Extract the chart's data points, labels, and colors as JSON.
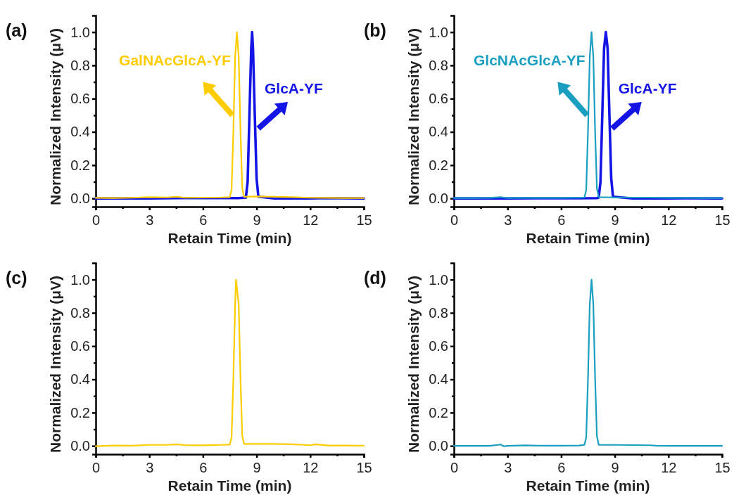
{
  "chart_data": [
    {
      "type": "line",
      "title": "(a)",
      "xlabel": "Retain Time (min)",
      "ylabel": "Normalized Intensity (μV)",
      "xlim": [
        0,
        15
      ],
      "ylim": [
        -0.05,
        1.1
      ],
      "xticks": [
        0,
        {
          "value": 1.5,
          "label": null
        },
        3,
        {
          "value": 4.5,
          "label": null
        },
        6,
        {
          "value": 7.5,
          "label": null
        },
        9,
        {
          "value": 10.5,
          "label": null
        },
        12,
        {
          "value": 13.5,
          "label": null
        },
        15
      ],
      "yticks": [
        {
          "value": 0,
          "label": "0.0"
        },
        {
          "value": 0.1,
          "label": null
        },
        {
          "value": 0.2,
          "label": "0.2"
        },
        {
          "value": 0.3,
          "label": null
        },
        {
          "value": 0.4,
          "label": "0.4"
        },
        {
          "value": 0.5,
          "label": null
        },
        {
          "value": 0.6,
          "label": "0.6"
        },
        {
          "value": 0.7,
          "label": null
        },
        {
          "value": 0.8,
          "label": "0.8"
        },
        {
          "value": 0.9,
          "label": null
        },
        {
          "value": 1,
          "label": "1.0"
        }
      ],
      "marker": "none",
      "series": [
        {
          "name": "GalNAcGlcA-YF",
          "color": "#ffcc00",
          "x": [
            0,
            1,
            2,
            3,
            4,
            4.5,
            5,
            6,
            7,
            7.5,
            7.6,
            7.7,
            7.8,
            7.9,
            8,
            8.1,
            8.2,
            8.3,
            9,
            10,
            11,
            12,
            13,
            14,
            15
          ],
          "values": [
            0.003,
            0.002,
            0.004,
            0.008,
            0.006,
            0.01,
            0.004,
            0.005,
            0.006,
            0.008,
            0.05,
            0.4,
            0.85,
            1,
            0.85,
            0.4,
            0.06,
            0.01,
            0.012,
            0.01,
            0.008,
            0.004,
            0.003,
            0.002,
            0.002
          ]
        },
        {
          "name": "GlcA-YF",
          "color": "#1414e6",
          "x": [
            0,
            3,
            5,
            7,
            8,
            8.4,
            8.5,
            8.6,
            8.7,
            8.75,
            8.8,
            8.9,
            9,
            9.1,
            10,
            12,
            13,
            15
          ],
          "values": [
            0,
            0,
            0.002,
            0.002,
            0.002,
            0.005,
            0.1,
            0.5,
            0.9,
            1,
            0.9,
            0.5,
            0.12,
            0.01,
            0,
            0,
            0.002,
            0
          ]
        }
      ]
    },
    {
      "type": "line",
      "title": "(b)",
      "xlabel": "Retain Time (min)",
      "ylabel": "Normalized Intensity (μV)",
      "xlim": [
        0,
        15
      ],
      "ylim": [
        -0.05,
        1.1
      ],
      "xticks": [
        0,
        {
          "value": 1.5,
          "label": null
        },
        3,
        {
          "value": 4.5,
          "label": null
        },
        6,
        {
          "value": 7.5,
          "label": null
        },
        9,
        {
          "value": 10.5,
          "label": null
        },
        12,
        {
          "value": 13.5,
          "label": null
        },
        15
      ],
      "yticks": [
        {
          "value": 0,
          "label": "0.0"
        },
        {
          "value": 0.1,
          "label": null
        },
        {
          "value": 0.2,
          "label": "0.2"
        },
        {
          "value": 0.3,
          "label": null
        },
        {
          "value": 0.4,
          "label": "0.4"
        },
        {
          "value": 0.5,
          "label": null
        },
        {
          "value": 0.6,
          "label": "0.6"
        },
        {
          "value": 0.7,
          "label": null
        },
        {
          "value": 0.8,
          "label": "0.8"
        },
        {
          "value": 0.9,
          "label": null
        },
        {
          "value": 1,
          "label": "1.0"
        }
      ],
      "marker": "none",
      "series": [
        {
          "name": "GlcNAcGlcA-YF",
          "color": "#1a9fc0",
          "x": [
            0,
            1,
            2,
            2.6,
            3,
            4,
            5,
            6,
            7,
            7.3,
            7.4,
            7.5,
            7.6,
            7.7,
            7.8,
            7.9,
            8,
            8.1,
            9,
            10,
            11,
            12,
            13,
            14,
            15
          ],
          "values": [
            0.002,
            0.002,
            0.003,
            0.008,
            0.002,
            0.004,
            0.003,
            0.003,
            0.004,
            0.006,
            0.05,
            0.4,
            0.85,
            1,
            0.85,
            0.4,
            0.06,
            0.008,
            0.006,
            0.005,
            0.005,
            0.003,
            0.003,
            0.002,
            0.002
          ]
        },
        {
          "name": "GlcA-YF",
          "color": "#1414e6",
          "x": [
            0,
            3,
            5,
            7,
            8,
            8.1,
            8.2,
            8.3,
            8.4,
            8.5,
            8.6,
            8.7,
            8.8,
            8.9,
            10,
            12,
            13,
            15
          ],
          "values": [
            0,
            0,
            0.001,
            0.001,
            0.002,
            0.005,
            0.1,
            0.5,
            0.9,
            1,
            0.9,
            0.5,
            0.12,
            0.01,
            0,
            0,
            0.001,
            0
          ]
        }
      ]
    },
    {
      "type": "line",
      "title": "(c)",
      "xlabel": "Retain Time (min)",
      "ylabel": "Normalized Intensity (μV)",
      "xlim": [
        0,
        15
      ],
      "ylim": [
        -0.05,
        1.1
      ],
      "xticks": [
        0,
        {
          "value": 1.5,
          "label": null
        },
        3,
        {
          "value": 4.5,
          "label": null
        },
        6,
        {
          "value": 7.5,
          "label": null
        },
        9,
        {
          "value": 10.5,
          "label": null
        },
        12,
        {
          "value": 13.5,
          "label": null
        },
        15
      ],
      "yticks": [
        {
          "value": 0,
          "label": "0.0"
        },
        {
          "value": 0.1,
          "label": null
        },
        {
          "value": 0.2,
          "label": "0.2"
        },
        {
          "value": 0.3,
          "label": null
        },
        {
          "value": 0.4,
          "label": "0.4"
        },
        {
          "value": 0.5,
          "label": null
        },
        {
          "value": 0.6,
          "label": "0.6"
        },
        {
          "value": 0.7,
          "label": null
        },
        {
          "value": 0.8,
          "label": "0.8"
        },
        {
          "value": 0.9,
          "label": null
        },
        {
          "value": 1,
          "label": "1.0"
        }
      ],
      "marker": "none",
      "series": [
        {
          "color": "#ffcc00",
          "x": [
            0,
            1,
            2,
            3,
            4,
            4.5,
            5,
            6,
            7,
            7.5,
            7.6,
            7.7,
            7.8,
            7.85,
            7.9,
            8,
            8.1,
            8.2,
            8.3,
            9,
            10,
            11,
            12,
            12.3,
            13,
            14,
            15
          ],
          "values": [
            -0.002,
            0.002,
            0.001,
            0.006,
            0.006,
            0.01,
            0.004,
            0.003,
            0.006,
            0.008,
            0.05,
            0.4,
            0.85,
            1,
            0.95,
            0.85,
            0.4,
            0.06,
            0.012,
            0.012,
            0.012,
            0.01,
            0.004,
            0.01,
            0.002,
            0.002,
            0.001
          ]
        }
      ]
    },
    {
      "type": "line",
      "title": "(d)",
      "xlabel": "Retain Time (min)",
      "ylabel": "Normalized Intensity (μV)",
      "xlim": [
        0,
        15
      ],
      "ylim": [
        -0.05,
        1.1
      ],
      "xticks": [
        0,
        {
          "value": 1.5,
          "label": null
        },
        3,
        {
          "value": 4.5,
          "label": null
        },
        6,
        {
          "value": 7.5,
          "label": null
        },
        9,
        {
          "value": 10.5,
          "label": null
        },
        12,
        {
          "value": 13.5,
          "label": null
        },
        15
      ],
      "yticks": [
        {
          "value": 0,
          "label": "0.0"
        },
        {
          "value": 0.1,
          "label": null
        },
        {
          "value": 0.2,
          "label": "0.2"
        },
        {
          "value": 0.3,
          "label": null
        },
        {
          "value": 0.4,
          "label": "0.4"
        },
        {
          "value": 0.5,
          "label": null
        },
        {
          "value": 0.6,
          "label": "0.6"
        },
        {
          "value": 0.7,
          "label": null
        },
        {
          "value": 0.8,
          "label": "0.8"
        },
        {
          "value": 0.9,
          "label": null
        },
        {
          "value": 1,
          "label": "1.0"
        }
      ],
      "marker": "none",
      "series": [
        {
          "color": "#1a9fc0",
          "x": [
            0,
            1,
            2,
            2.6,
            2.8,
            3,
            4,
            5,
            6,
            7,
            7.3,
            7.4,
            7.5,
            7.6,
            7.7,
            7.8,
            7.9,
            8,
            8.1,
            9,
            10,
            11,
            11.3,
            12,
            13,
            14,
            15
          ],
          "values": [
            0,
            0,
            0,
            0.008,
            -0.002,
            0,
            0.003,
            0.001,
            0.001,
            0.002,
            0.006,
            0.05,
            0.4,
            0.85,
            1,
            0.85,
            0.4,
            0.06,
            0.006,
            0.006,
            0.005,
            0.004,
            0.001,
            0,
            0,
            0,
            0
          ]
        }
      ]
    }
  ]
}
